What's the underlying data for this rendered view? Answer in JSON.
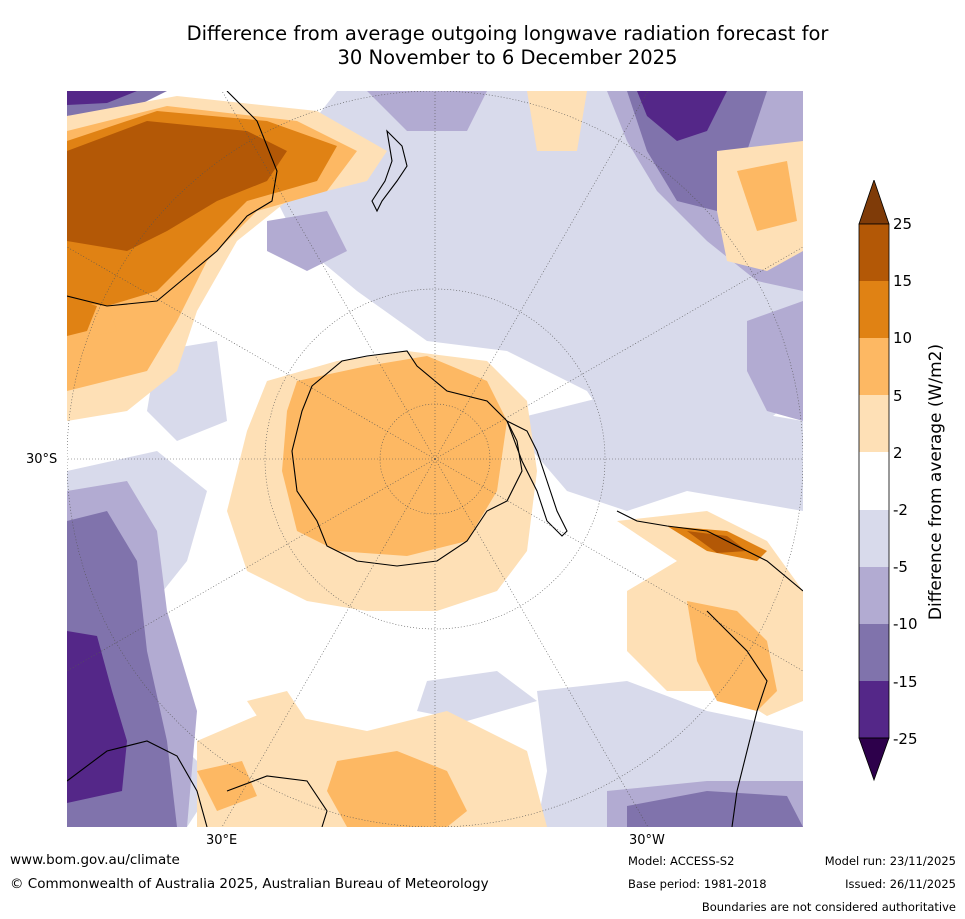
{
  "title": {
    "line1": "Difference from average outgoing longwave radiation forecast for",
    "line2": "30 November to 6 December 2025"
  },
  "map": {
    "projection": "south polar stereographic",
    "lat_label": "30°S",
    "lon_labels": {
      "east": "30°E",
      "west": "30°W"
    }
  },
  "colorbar": {
    "label": "Difference from average (W/m2)",
    "ticks": [
      "25",
      "15",
      "10",
      "5",
      "2",
      "-2",
      "-5",
      "-10",
      "-15",
      "-25"
    ],
    "colors": {
      "above_25": "#7f3b08",
      "15_to_25": "#b35806",
      "10_to_15": "#e08214",
      "5_to_10": "#fdb863",
      "2_to_5": "#fee0b6",
      "neutral": "#ffffff",
      "minus5_to_minus2": "#d8daeb",
      "minus10_to_minus5": "#b2abd2",
      "minus15_to_minus10": "#8073ac",
      "minus25_to_minus15": "#542788",
      "below_minus25": "#2d004b"
    }
  },
  "footer": {
    "website": "www.bom.gov.au/climate",
    "copyright": "© Commonwealth of Australia 2025, Australian Bureau of Meteorology",
    "model": "Model: ACCESS-S2",
    "base_period": "Base period: 1981-2018",
    "model_run": "Model run: 23/11/2025",
    "issued": "Issued: 26/11/2025",
    "disclaimer": "Boundaries are not considered authoritative"
  }
}
